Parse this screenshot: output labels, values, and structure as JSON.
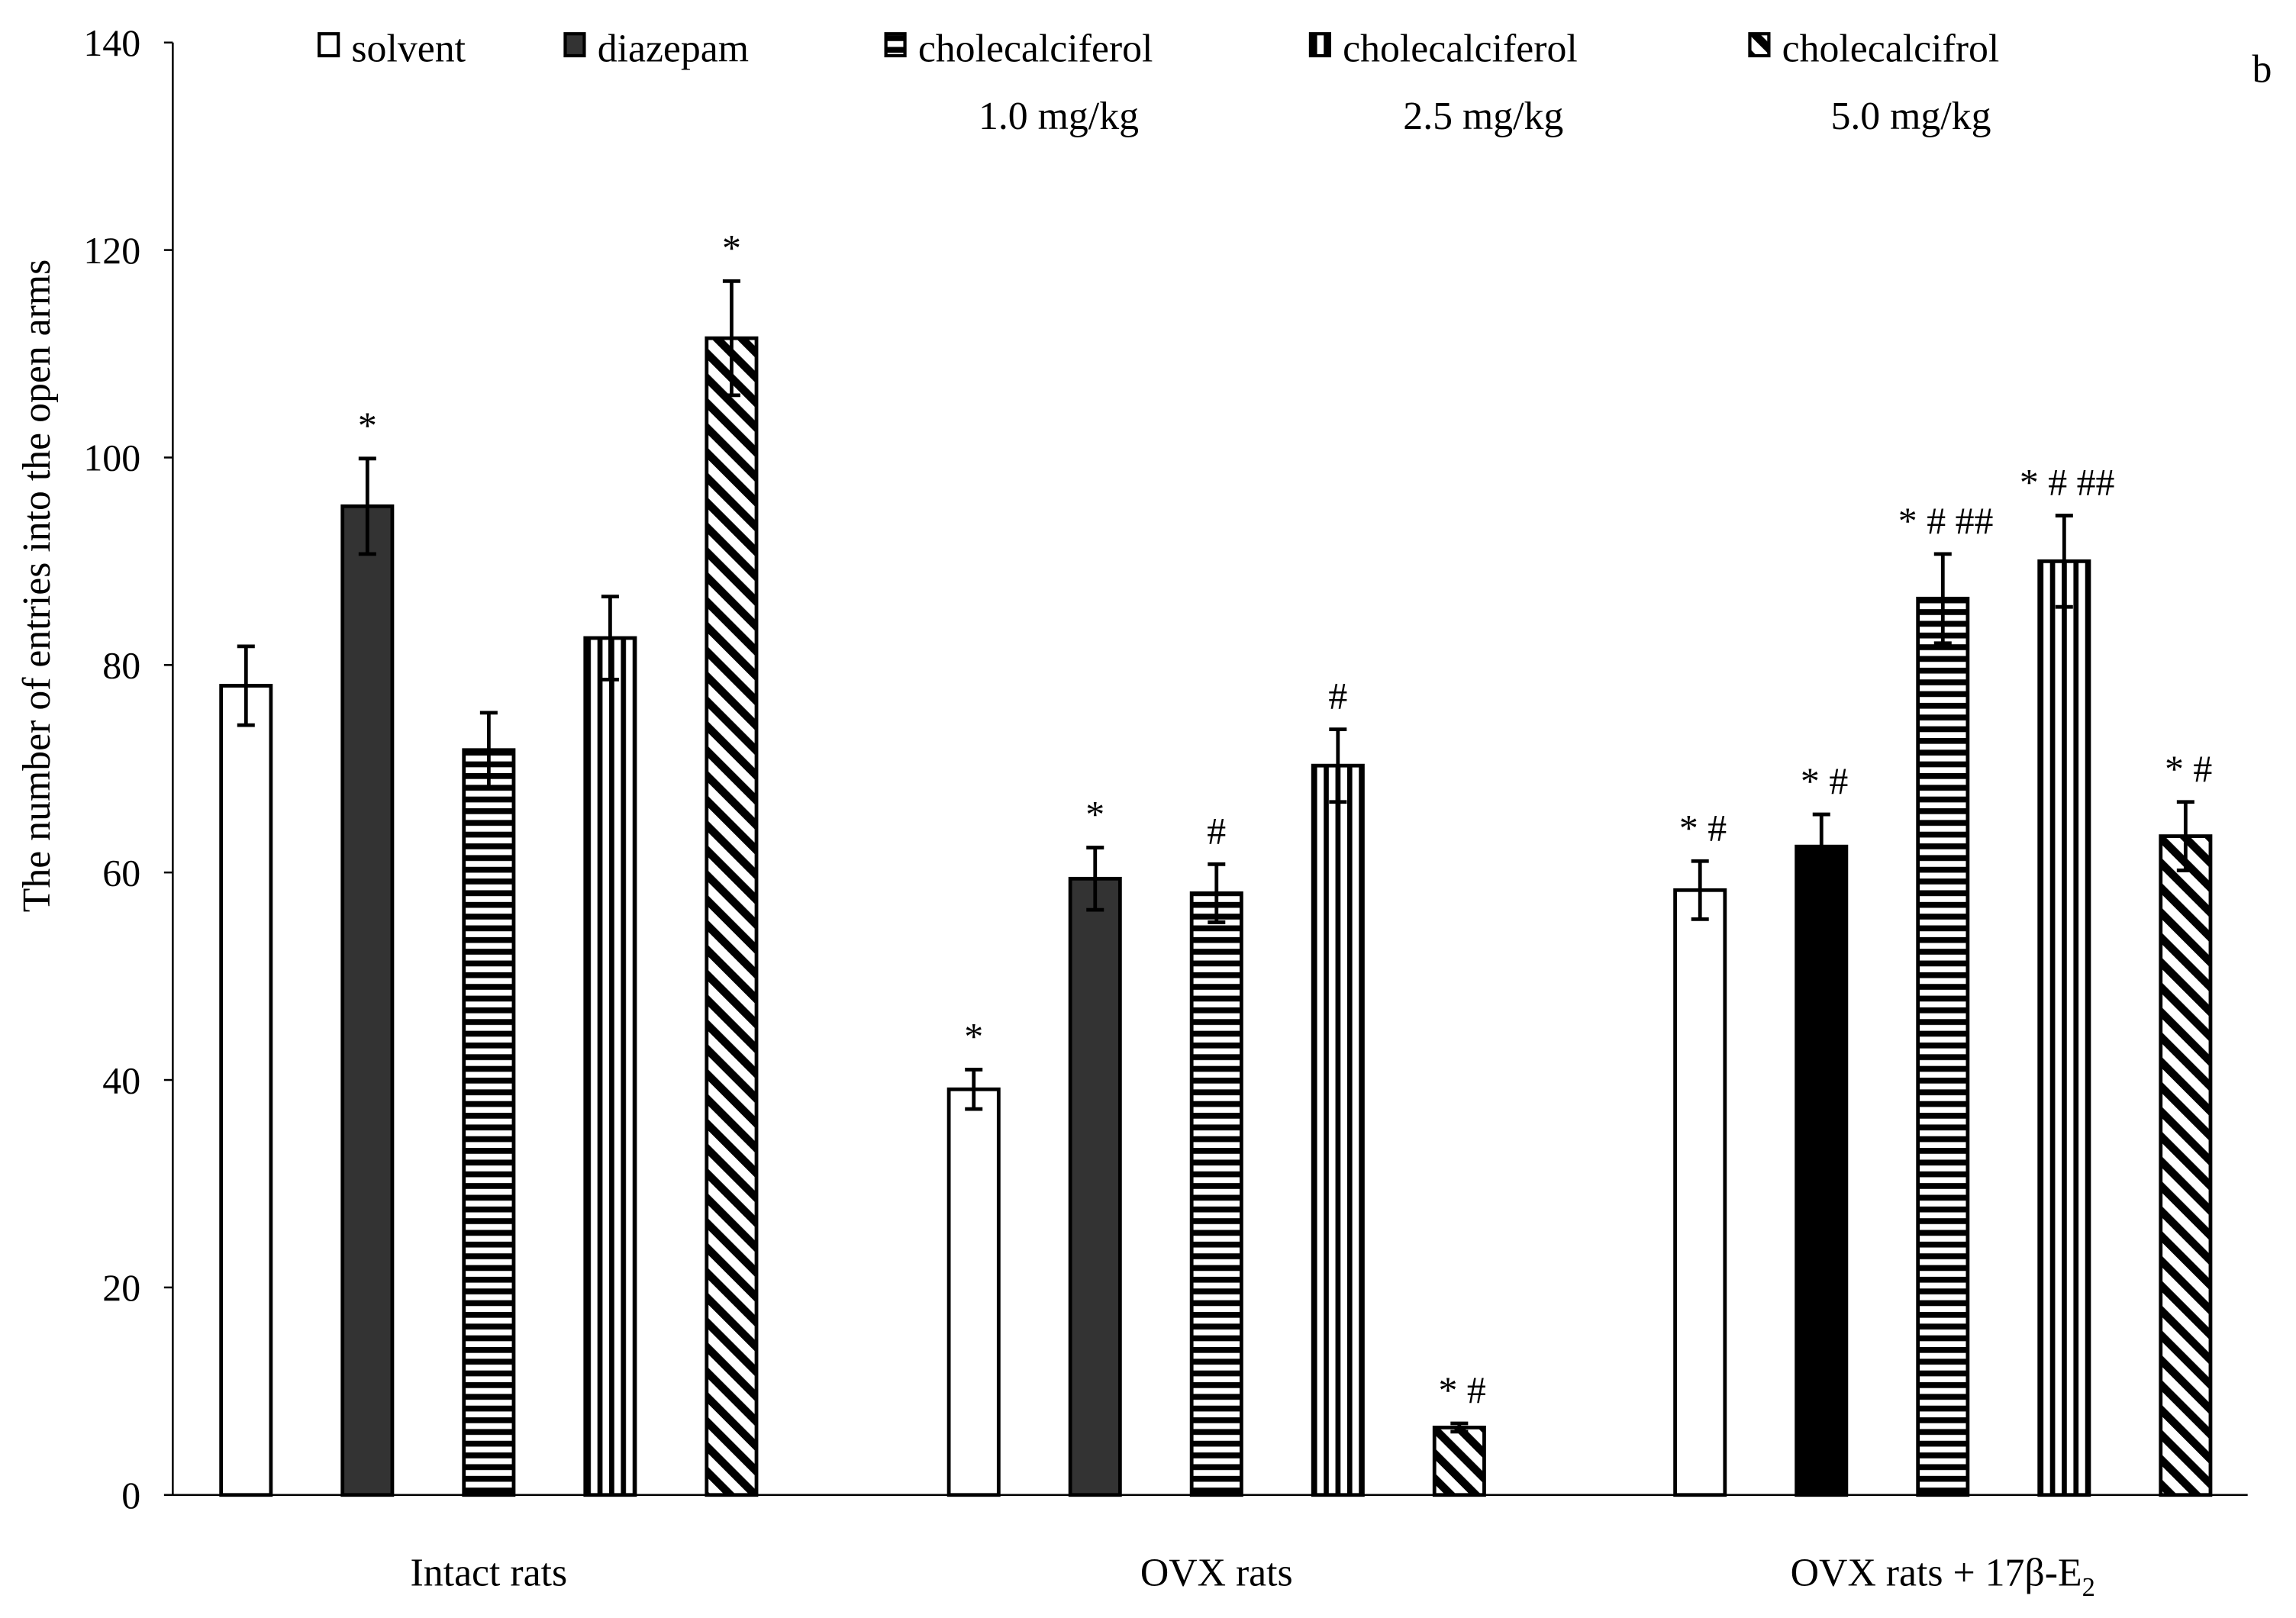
{
  "chart_data": {
    "type": "bar",
    "title": "",
    "panel_label": "b",
    "xlabel": "",
    "ylabel": "The number of entries into the open arms",
    "ylim": [
      0,
      140
    ],
    "yticks": [
      0,
      20,
      40,
      60,
      80,
      100,
      120,
      140
    ],
    "grid": false,
    "legend_position": "top",
    "categories": [
      {
        "label": "Intact rats",
        "sub": ""
      },
      {
        "label": "OVX rats",
        "sub": ""
      },
      {
        "label": "OVX rats + 17β-E",
        "sub": "2"
      }
    ],
    "series": [
      {
        "name": "solvent",
        "dose": "",
        "pattern": "empty",
        "colors": [
          "#ffffff",
          "#ffffff",
          "#ffffff"
        ],
        "values": [
          78.0,
          39.1,
          58.3
        ],
        "errors": [
          3.8,
          1.9,
          2.8
        ],
        "annotations": [
          "",
          "*",
          "* #"
        ]
      },
      {
        "name": "diazepam",
        "dose": "",
        "pattern": "solid",
        "colors": [
          "#333333",
          "#333333",
          "#000000"
        ],
        "values": [
          95.3,
          59.4,
          62.5
        ],
        "errors": [
          4.6,
          3.0,
          3.1
        ],
        "annotations": [
          "*",
          "*",
          "* #"
        ]
      },
      {
        "name": "cholecalciferol",
        "dose": "1.0 mg/kg",
        "pattern": "horizontal",
        "colors": [
          "#000000",
          "#000000",
          "#000000"
        ],
        "values": [
          71.8,
          58.0,
          86.4
        ],
        "errors": [
          3.6,
          2.8,
          4.3
        ],
        "annotations": [
          "",
          "#",
          "* # ##"
        ]
      },
      {
        "name": "cholecalciferol",
        "dose": "2.5 mg/kg",
        "pattern": "vertical",
        "colors": [
          "#000000",
          "#000000",
          "#000000"
        ],
        "values": [
          82.6,
          70.3,
          90.0
        ],
        "errors": [
          4.0,
          3.5,
          4.4
        ],
        "annotations": [
          "",
          "#",
          "* # ##"
        ]
      },
      {
        "name": "cholecalcifrol",
        "dose": "5.0 mg/kg",
        "pattern": "diagonal",
        "colors": [
          "#000000",
          "#000000",
          "#000000"
        ],
        "values": [
          111.5,
          6.5,
          63.5
        ],
        "errors": [
          5.5,
          0.4,
          3.3
        ],
        "annotations": [
          "*",
          "* #",
          "* #"
        ]
      }
    ]
  }
}
